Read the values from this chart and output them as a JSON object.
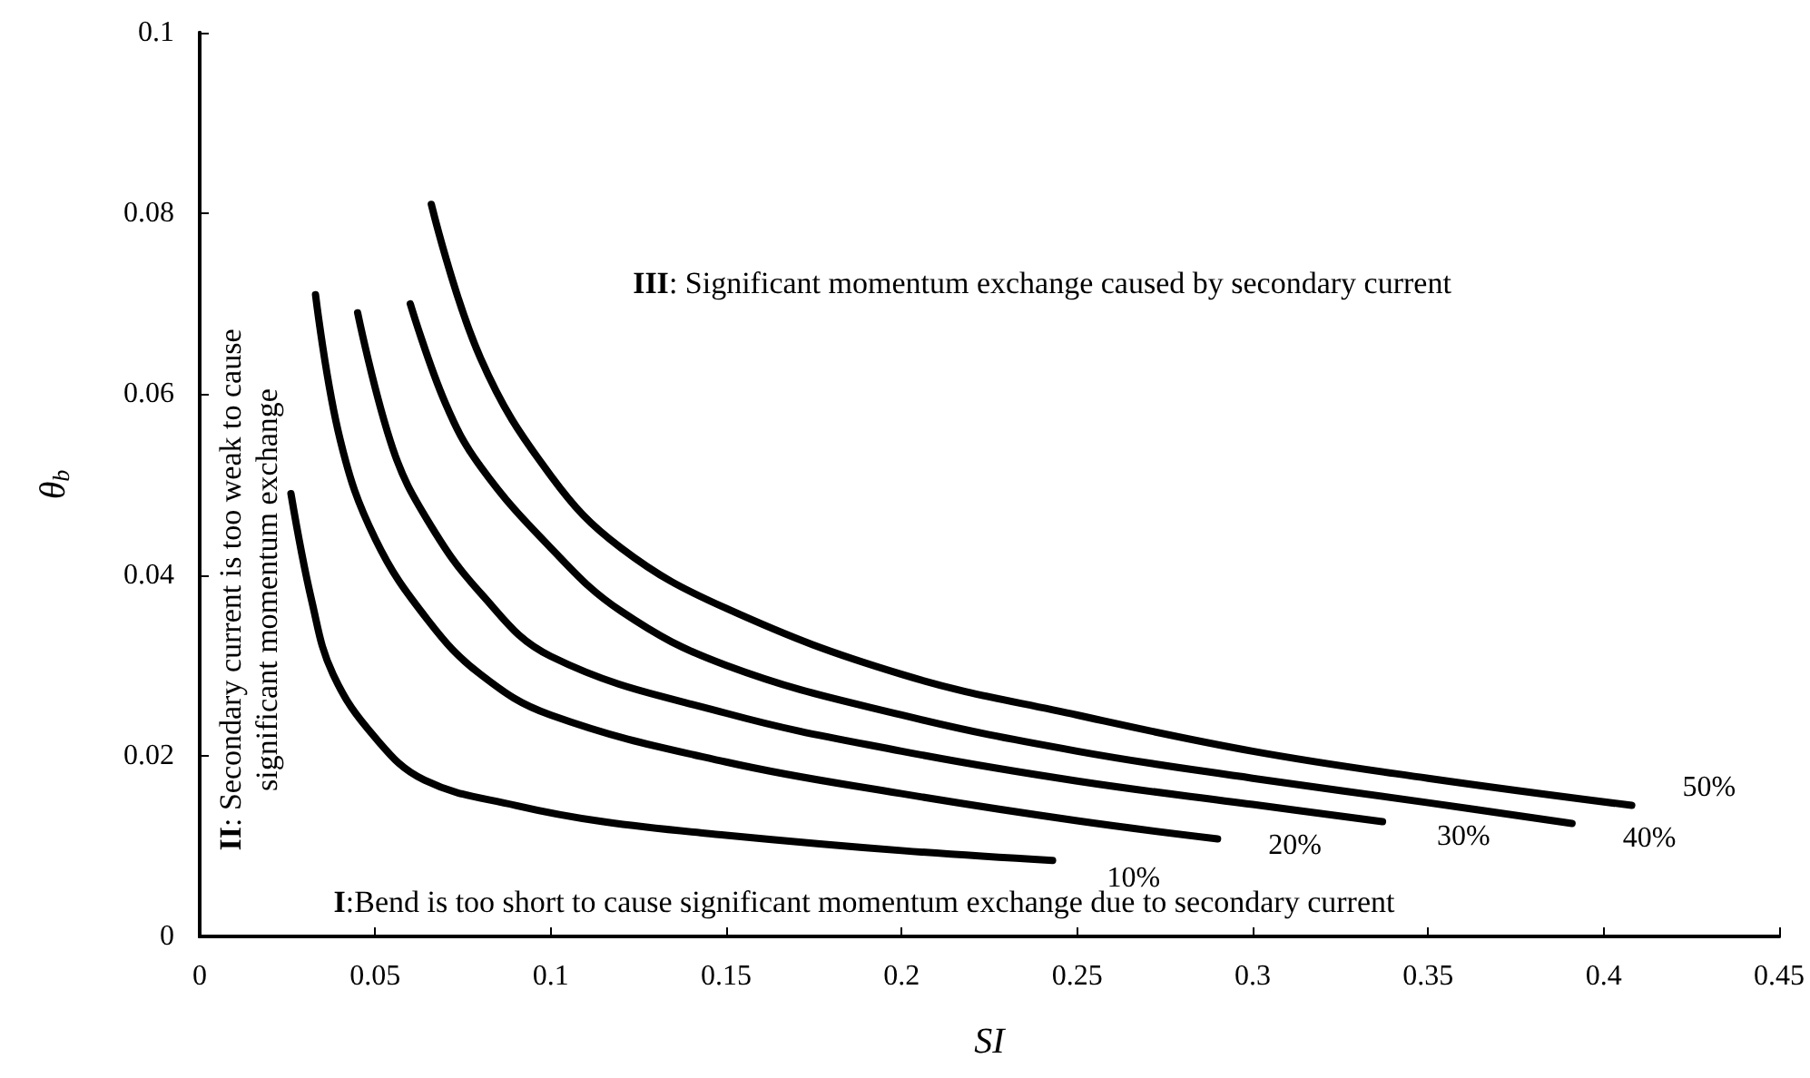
{
  "chart_data": {
    "type": "line",
    "xlabel": "SI",
    "ylabel": "θ$_{b}$",
    "xlim": [
      0,
      0.45
    ],
    "xticks": [
      0,
      0.05,
      0.1,
      0.15,
      0.2,
      0.25,
      0.3,
      0.35,
      0.4,
      0.45
    ],
    "ylim": [
      0,
      0.1
    ],
    "yticks": [
      0,
      0.02,
      0.04,
      0.06,
      0.08,
      0.1
    ],
    "grid": false,
    "marker": "none",
    "line_style": "solid",
    "series": [
      {
        "name": "10%",
        "color": "#000000",
        "x": [
          0.026,
          0.032,
          0.038,
          0.05,
          0.064,
          0.09,
          0.115,
          0.15,
          0.2,
          0.243
        ],
        "values": [
          0.049,
          0.037,
          0.029,
          0.022,
          0.0173,
          0.0145,
          0.0127,
          0.0112,
          0.0095,
          0.0084
        ]
      },
      {
        "name": "20%",
        "color": "#000000",
        "x": [
          0.033,
          0.04,
          0.05,
          0.065,
          0.08,
          0.1,
          0.15,
          0.2,
          0.25,
          0.29
        ],
        "values": [
          0.071,
          0.055,
          0.044,
          0.035,
          0.029,
          0.0245,
          0.0193,
          0.0158,
          0.0128,
          0.0108
        ]
      },
      {
        "name": "30%",
        "color": "#000000",
        "x": [
          0.045,
          0.055,
          0.065,
          0.08,
          0.1,
          0.15,
          0.2,
          0.25,
          0.3,
          0.337
        ],
        "values": [
          0.069,
          0.054,
          0.046,
          0.038,
          0.031,
          0.0247,
          0.0205,
          0.0172,
          0.0146,
          0.0127
        ]
      },
      {
        "name": "40%",
        "color": "#000000",
        "x": [
          0.06,
          0.07,
          0.08,
          0.1,
          0.12,
          0.15,
          0.2,
          0.25,
          0.3,
          0.35,
          0.391
        ],
        "values": [
          0.07,
          0.059,
          0.052,
          0.043,
          0.036,
          0.03,
          0.0245,
          0.0205,
          0.0175,
          0.0148,
          0.0125
        ]
      },
      {
        "name": "50%",
        "color": "#000000",
        "x": [
          0.066,
          0.08,
          0.1,
          0.12,
          0.15,
          0.2,
          0.25,
          0.3,
          0.35,
          0.408
        ],
        "values": [
          0.081,
          0.064,
          0.051,
          0.043,
          0.0363,
          0.029,
          0.0245,
          0.0205,
          0.0175,
          0.0145
        ]
      }
    ],
    "annotations": [
      "III: Significant momentum exchange caused by secondary current",
      "I:Bend is too short to cause significant momentum exchange due to secondary current",
      "II: Secondary current is too weak to cause\nsignificant momentum exchange"
    ]
  }
}
